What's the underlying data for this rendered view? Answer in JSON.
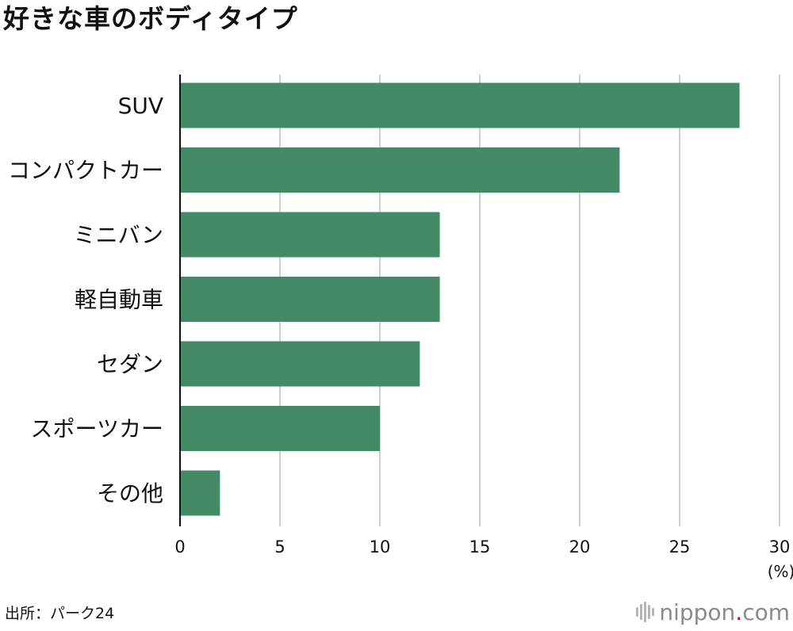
{
  "chart_data": {
    "type": "bar",
    "orientation": "horizontal",
    "title": "好きな車のボディタイプ",
    "categories": [
      "SUV",
      "コンパクトカー",
      "ミニバン",
      "軽自動車",
      "セダン",
      "スポーツカー",
      "その他"
    ],
    "values": [
      28,
      22,
      13,
      13,
      12,
      10,
      2
    ],
    "xlim": [
      0,
      30
    ],
    "xticks": [
      "0",
      "5",
      "10",
      "15",
      "20",
      "25",
      "30"
    ],
    "xunit": "(%)",
    "grid": true,
    "bar_color": "#458a67",
    "grid_color": "#cfcfcf"
  },
  "source": "出所：パーク24",
  "logo": {
    "name": "nippon",
    "dot": ".",
    "suffix": "com",
    "icon": "soundwave-icon"
  }
}
